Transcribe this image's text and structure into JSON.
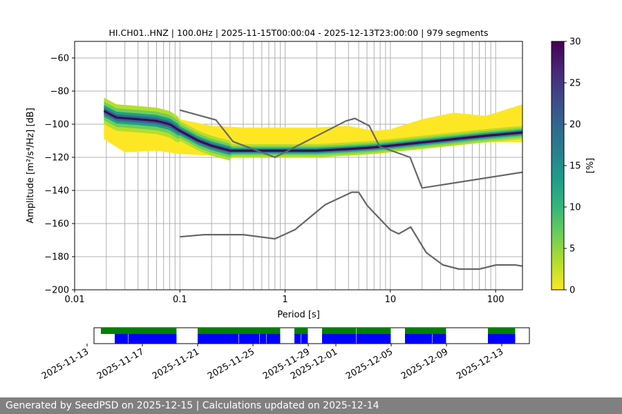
{
  "title": "HI.CH01..HNZ | 100.0Hz | 2025-11-15T00:00:04 - 2025-12-13T23:00:00 | 979 segments",
  "footer": "Generated by SeedPSD on 2025-12-15 | Calculations updated on 2025-12-14",
  "colors": {
    "noise_model": "#666666",
    "grid": "#b0b0b0",
    "availability_top": "#008000",
    "availability_bottom": "#0000ff",
    "footer_bg": "#808080",
    "colormap": [
      "#fde725",
      "#b5de2b",
      "#6ece58",
      "#35b779",
      "#1f9e89",
      "#26828e",
      "#31688e",
      "#3e4989",
      "#482878",
      "#440154"
    ]
  },
  "chart_data": [
    {
      "type": "heatmap",
      "title": "HI.CH01..HNZ | 100.0Hz | 2025-11-15T00:00:04 - 2025-12-13T23:00:00 | 979 segments",
      "xlabel": "Period [s]",
      "ylabel": "Amplitude [m²/s⁴/Hz] [dB]",
      "x_scale": "log",
      "xlim": [
        0.01,
        180
      ],
      "ylim": [
        -200,
        -50
      ],
      "x_ticks": [
        "0.01",
        "0.1",
        "1",
        "10",
        "100"
      ],
      "x_tick_values": [
        0.01,
        0.1,
        1,
        10,
        100
      ],
      "y_ticks": [
        "−60",
        "−80",
        "−100",
        "−120",
        "−140",
        "−160",
        "−180",
        "−200"
      ],
      "y_tick_values": [
        -60,
        -80,
        -100,
        -120,
        -140,
        -160,
        -180,
        -200
      ],
      "grid": "vertical lines at period bins",
      "grid_periods": [
        0.02,
        0.03,
        0.04,
        0.05,
        0.06,
        0.07,
        0.08,
        0.09,
        0.1,
        0.2,
        0.3,
        0.4,
        0.5,
        0.6,
        0.7,
        0.8,
        0.9,
        1,
        2,
        3,
        4,
        5,
        6,
        7,
        8,
        9,
        10,
        20,
        30,
        40,
        50,
        60,
        70,
        80,
        90,
        100
      ],
      "colorbar": {
        "label": "[%]",
        "range": [
          0,
          30
        ],
        "ticks": [
          "0",
          "5",
          "10",
          "15",
          "20",
          "25",
          "30"
        ],
        "tick_values": [
          0,
          5,
          10,
          15,
          20,
          25,
          30
        ]
      },
      "mode_curve": {
        "period": [
          0.019,
          0.025,
          0.04,
          0.06,
          0.08,
          0.1,
          0.15,
          0.2,
          0.3,
          0.5,
          1,
          2,
          4,
          7,
          10,
          20,
          40,
          80,
          180
        ],
        "db": [
          -92,
          -96,
          -97,
          -98,
          -100,
          -104,
          -110,
          -113,
          -116,
          -116,
          -116,
          -116,
          -115,
          -114,
          -113,
          -111,
          -109,
          -107,
          -105
        ]
      },
      "spread": {
        "period": [
          0.019,
          0.03,
          0.06,
          0.1,
          0.2,
          0.4,
          0.7,
          1,
          2,
          4,
          7,
          10,
          20,
          40,
          80,
          180
        ],
        "upper_db": [
          -87,
          -91,
          -91,
          -97,
          -101,
          -102,
          -102,
          -102,
          -102,
          -101,
          -104,
          -103,
          -97,
          -93,
          -95,
          -88
        ],
        "lower_db": [
          -109,
          -117,
          -116,
          -118,
          -119,
          -119,
          -119,
          -120,
          -119,
          -119,
          -118,
          -117,
          -114,
          -112,
          -111,
          -111
        ]
      },
      "noise_models": [
        {
          "name": "NHNM",
          "period": [
            0.1,
            0.22,
            0.32,
            0.8,
            3.8,
            4.6,
            6.3,
            7.9,
            15.4,
            20,
            180
          ],
          "db": [
            -91.5,
            -97.4,
            -110.5,
            -120,
            -98,
            -96.5,
            -101,
            -113.5,
            -120,
            -138.5,
            -129
          ]
        },
        {
          "name": "NLNM",
          "period": [
            0.1,
            0.17,
            0.4,
            0.8,
            1.24,
            2.4,
            4.3,
            5,
            6,
            10,
            12,
            15.6,
            21.9,
            31.6,
            45,
            70,
            101,
            154,
            180
          ],
          "db": [
            -168,
            -166.7,
            -166.7,
            -169.2,
            -163.7,
            -148.6,
            -141.1,
            -141.1,
            -149,
            -163.8,
            -166.2,
            -162.1,
            -177.5,
            -185,
            -187.5,
            -187.5,
            -185,
            -185,
            -185.7
          ]
        }
      ]
    },
    {
      "type": "timeline",
      "x_ticks": [
        "2025-11-13",
        "2025-11-17",
        "2025-11-21",
        "2025-11-25",
        "2025-11-29",
        "2025-12-01",
        "2025-12-05",
        "2025-12-09",
        "2025-12-13"
      ],
      "x_tick_dates": [
        "2025-11-13",
        "2025-11-17",
        "2025-11-21",
        "2025-11-25",
        "2025-11-29",
        "2025-12-01",
        "2025-12-05",
        "2025-12-09",
        "2025-12-13"
      ],
      "xlim": [
        "2025-11-13T12:00",
        "2025-12-15T00:00"
      ],
      "rows": [
        {
          "row": "top",
          "color": "#008000",
          "segments": [
            [
              "2025-11-14T00:00",
              "2025-11-19T12:00"
            ],
            [
              "2025-11-21T00:00",
              "2025-11-27T00:00"
            ],
            [
              "2025-11-28T00:00",
              "2025-11-29T00:00"
            ],
            [
              "2025-11-30T00:00",
              "2025-12-02T12:00"
            ],
            [
              "2025-12-02T12:00",
              "2025-12-05T00:00"
            ],
            [
              "2025-12-06T00:00",
              "2025-12-09T00:00"
            ],
            [
              "2025-12-12T00:00",
              "2025-12-14T00:00"
            ]
          ]
        },
        {
          "row": "bottom",
          "color": "#0000ff",
          "segments": [
            [
              "2025-11-15T00:00",
              "2025-11-16T00:00"
            ],
            [
              "2025-11-16T00:00",
              "2025-11-19T12:00"
            ],
            [
              "2025-11-21T00:00",
              "2025-11-24T00:00"
            ],
            [
              "2025-11-24T00:00",
              "2025-11-25T12:00"
            ],
            [
              "2025-11-25T12:00",
              "2025-11-26T00:00"
            ],
            [
              "2025-11-26T00:00",
              "2025-11-27T00:00"
            ],
            [
              "2025-11-28T00:00",
              "2025-11-28T12:00"
            ],
            [
              "2025-11-28T12:00",
              "2025-11-29T00:00"
            ],
            [
              "2025-11-30T00:00",
              "2025-12-02T12:00"
            ],
            [
              "2025-12-02T12:00",
              "2025-12-05T00:00"
            ],
            [
              "2025-12-06T00:00",
              "2025-12-08T00:00"
            ],
            [
              "2025-12-08T00:00",
              "2025-12-09T00:00"
            ],
            [
              "2025-12-12T00:00",
              "2025-12-14T00:00"
            ]
          ]
        }
      ]
    }
  ]
}
